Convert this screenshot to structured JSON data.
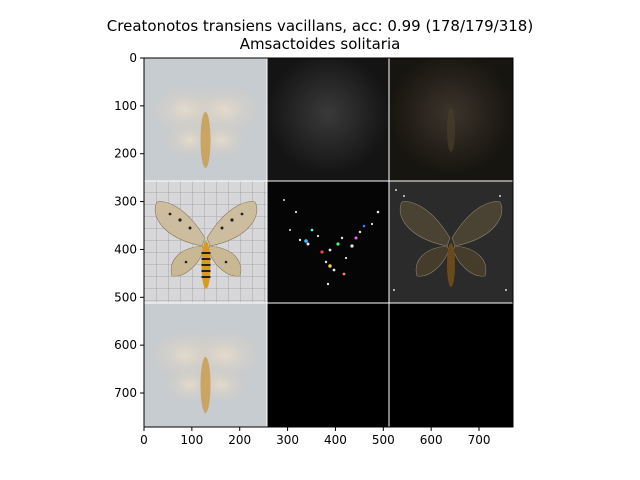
{
  "figure": {
    "title_line1": "Creatonotos transiens vacillans, acc: 0.99 (178/179/318)",
    "title_line2": "Amsactoides solitaria"
  },
  "axes": {
    "x_ticks": [
      0,
      100,
      200,
      300,
      400,
      500,
      600,
      700
    ],
    "y_ticks": [
      0,
      100,
      200,
      300,
      400,
      500,
      600,
      700
    ],
    "x_range": [
      0,
      771
    ],
    "y_range": [
      0,
      771
    ],
    "grid": "3x3 image tiles, 257 px each"
  },
  "tiles": [
    {
      "row": 0,
      "col": 0,
      "content": "blurred-moth-light"
    },
    {
      "row": 0,
      "col": 1,
      "content": "dark-noise"
    },
    {
      "row": 0,
      "col": 2,
      "content": "dark-moth-faint"
    },
    {
      "row": 1,
      "col": 0,
      "content": "moth-photo-on-grid"
    },
    {
      "row": 1,
      "col": 1,
      "content": "sparse-colored-noise-moth"
    },
    {
      "row": 1,
      "col": 2,
      "content": "dark-moth-highlighted"
    },
    {
      "row": 2,
      "col": 0,
      "content": "blurred-moth-light"
    },
    {
      "row": 2,
      "col": 1,
      "content": "black"
    },
    {
      "row": 2,
      "col": 2,
      "content": "black"
    }
  ]
}
